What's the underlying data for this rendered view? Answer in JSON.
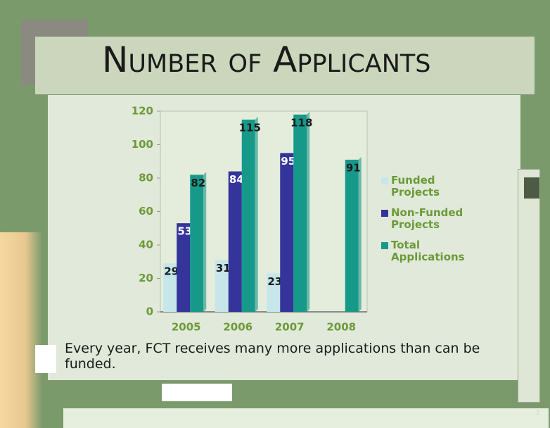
{
  "chart_data": {
    "type": "bar",
    "title": "Number of Applicants",
    "categories": [
      "2005",
      "2006",
      "2007",
      "2008"
    ],
    "series": [
      {
        "name": "Funded Projects",
        "color": "#c6e6ea",
        "values": [
          29,
          31,
          23,
          null
        ]
      },
      {
        "name": "Non-Funded Projects",
        "color": "#34349a",
        "values": [
          53,
          84,
          95,
          null
        ]
      },
      {
        "name": "Total Applications",
        "color": "#17998a",
        "values": [
          82,
          115,
          118,
          91
        ]
      }
    ],
    "ylim": [
      0,
      120
    ],
    "yticks": [
      0,
      20,
      40,
      60,
      80,
      100,
      120
    ],
    "grid": false,
    "legend": "right",
    "caption": "Every year, FCT receives many more applications than can be funded.",
    "page_number": "2"
  }
}
